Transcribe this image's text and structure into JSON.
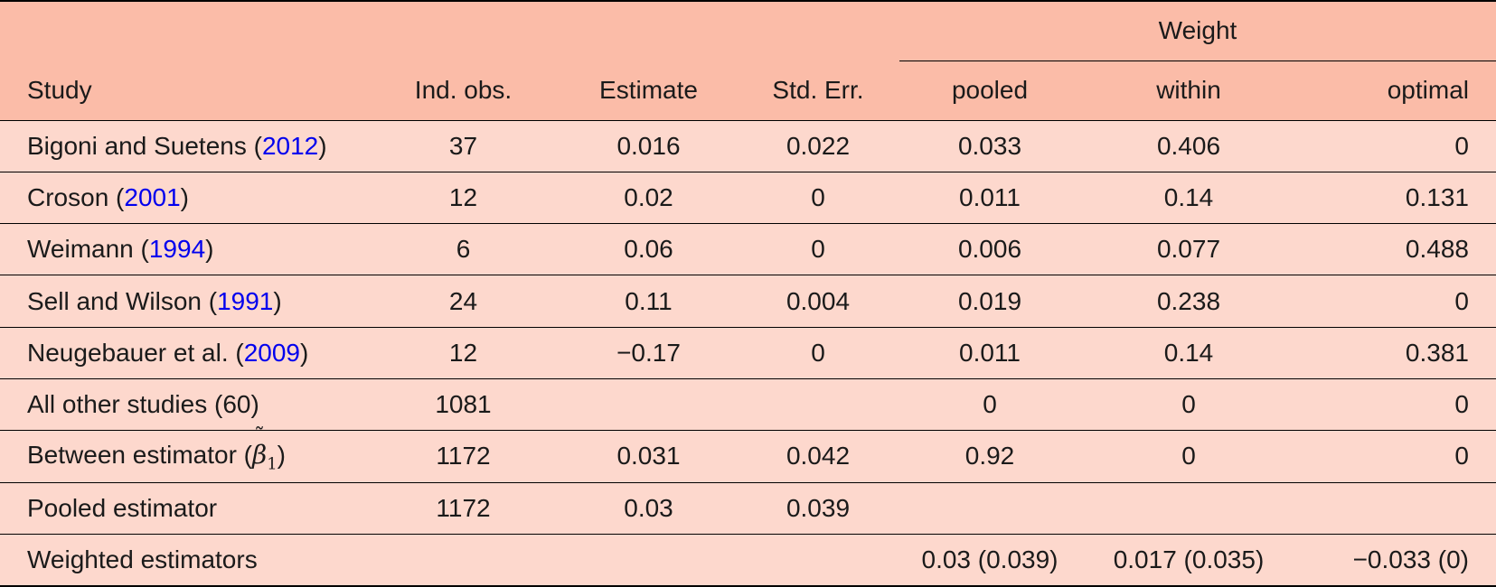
{
  "header": {
    "group_label": "Weight",
    "columns": [
      "Study",
      "Ind. obs.",
      "Estimate",
      "Std. Err.",
      "pooled",
      "within",
      "optimal"
    ]
  },
  "rows": [
    {
      "study_prefix": "Bigoni and Suetens (",
      "study_year": "2012",
      "study_suffix": ")",
      "obs": "37",
      "estimate": "0.016",
      "se": "0.022",
      "pooled": "0.033",
      "within": "0.406",
      "optimal": "0"
    },
    {
      "study_prefix": "Croson (",
      "study_year": "2001",
      "study_suffix": ")",
      "obs": "12",
      "estimate": "0.02",
      "se": "0",
      "pooled": "0.011",
      "within": "0.14",
      "optimal": "0.131"
    },
    {
      "study_prefix": "Weimann (",
      "study_year": "1994",
      "study_suffix": ")",
      "obs": "6",
      "estimate": "0.06",
      "se": "0",
      "pooled": "0.006",
      "within": "0.077",
      "optimal": "0.488"
    },
    {
      "study_prefix": "Sell and Wilson (",
      "study_year": "1991",
      "study_suffix": ")",
      "obs": "24",
      "estimate": "0.11",
      "se": "0.004",
      "pooled": "0.019",
      "within": "0.238",
      "optimal": "0"
    },
    {
      "study_prefix": "Neugebauer et al. (",
      "study_year": "2009",
      "study_suffix": ")",
      "obs": "12",
      "estimate": "−0.17",
      "se": "0",
      "pooled": "0.011",
      "within": "0.14",
      "optimal": "0.381"
    },
    {
      "study": "All other studies (60)",
      "obs": "1081",
      "estimate": "",
      "se": "",
      "pooled": "0",
      "within": "0",
      "optimal": "0"
    },
    {
      "study_prefix": "Between estimator (",
      "beta_symbol": "β",
      "beta_sub": "1",
      "study_suffix": ")",
      "obs": "1172",
      "estimate": "0.031",
      "se": "0.042",
      "pooled": "0.92",
      "within": "0",
      "optimal": "0"
    },
    {
      "study": "Pooled estimator",
      "obs": "1172",
      "estimate": "0.03",
      "se": "0.039",
      "pooled": "",
      "within": "",
      "optimal": ""
    },
    {
      "study": "Weighted estimators",
      "obs": "",
      "estimate": "",
      "se": "",
      "pooled": "0.03 (0.039)",
      "within": "0.017 (0.035)",
      "optimal": "−0.033 (0)"
    }
  ]
}
